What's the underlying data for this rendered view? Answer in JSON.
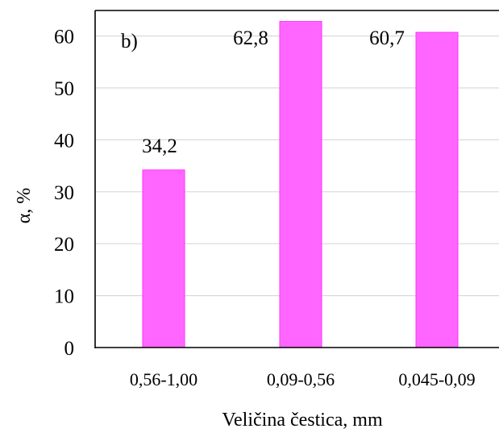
{
  "chart_data": {
    "type": "bar",
    "panel_label": "b)",
    "categories": [
      "0,56-1,00",
      "0,09-0,56",
      "0,045-0,09"
    ],
    "values": [
      34.2,
      62.8,
      60.7
    ],
    "data_labels": [
      "34,2",
      "62,8",
      "60,7"
    ],
    "ylabel": "α, %",
    "xlabel": "Veličina čestica, mm",
    "ylim": [
      0,
      65
    ],
    "yticks": [
      "0",
      "10",
      "20",
      "30",
      "40",
      "50",
      "60"
    ],
    "grid": true,
    "bar_color": "#ff66ff",
    "bar_edge_color": "#ff33ff"
  }
}
